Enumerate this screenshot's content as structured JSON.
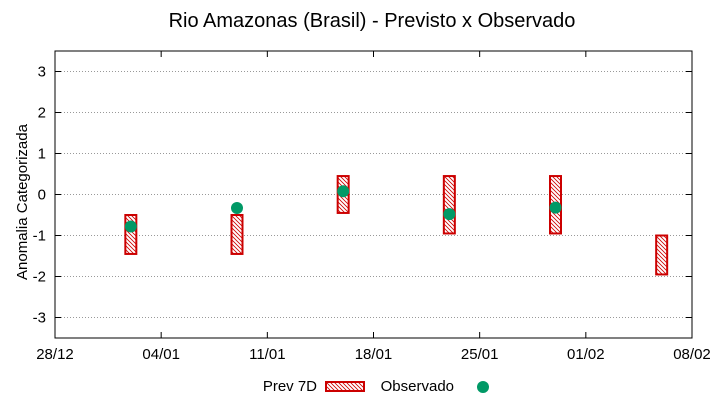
{
  "chart_data": {
    "type": "range-bar-with-points",
    "title": "Rio Amazonas (Brasil) - Previsto x Observado",
    "xlabel": "",
    "ylabel": "Anomalia Categorizada",
    "xlim": [
      0,
      42
    ],
    "x_ticks": [
      {
        "x": 0,
        "label": "28/12"
      },
      {
        "x": 7,
        "label": "04/01"
      },
      {
        "x": 14,
        "label": "11/01"
      },
      {
        "x": 21,
        "label": "18/01"
      },
      {
        "x": 28,
        "label": "25/01"
      },
      {
        "x": 35,
        "label": "01/02"
      },
      {
        "x": 42,
        "label": "08/02"
      }
    ],
    "ylim": [
      -3.5,
      3.5
    ],
    "y_ticks": [
      3,
      2,
      1,
      0,
      -1,
      -2,
      -3
    ],
    "grid": "horizontal dotted",
    "legend_position": "bottom",
    "colors": {
      "forecast_box": "#cc0000",
      "observed_point": "#009966",
      "grid": "#999999"
    },
    "series": [
      {
        "name": "Prev 7D",
        "kind": "range",
        "points": [
          {
            "x": 5,
            "low": -1.45,
            "high": -0.5
          },
          {
            "x": 12,
            "low": -1.45,
            "high": -0.5
          },
          {
            "x": 19,
            "low": -0.45,
            "high": 0.45
          },
          {
            "x": 26,
            "low": -0.95,
            "high": 0.45
          },
          {
            "x": 33,
            "low": -0.95,
            "high": 0.45
          },
          {
            "x": 40,
            "low": -1.95,
            "high": -1.0
          }
        ]
      },
      {
        "name": "Observado",
        "kind": "point",
        "points": [
          {
            "x": 5,
            "y": -0.78
          },
          {
            "x": 12,
            "y": -0.33
          },
          {
            "x": 19,
            "y": 0.08
          },
          {
            "x": 26,
            "y": -0.48
          },
          {
            "x": 33,
            "y": -0.32
          }
        ]
      }
    ]
  }
}
